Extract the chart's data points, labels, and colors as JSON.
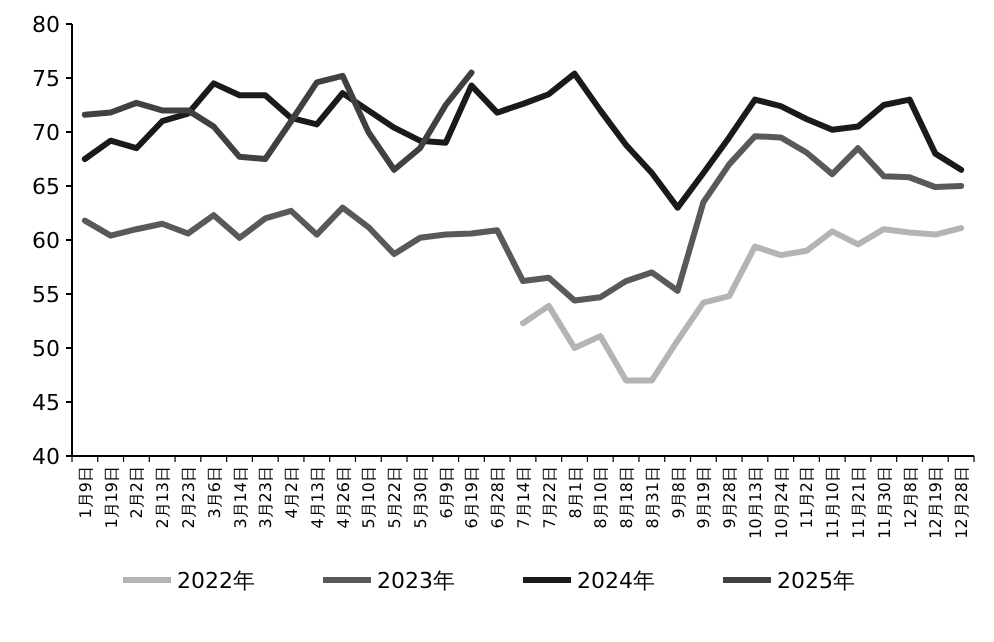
{
  "chart_data": {
    "type": "line",
    "categories": [
      "1月9日",
      "1月19日",
      "2月2日",
      "2月13日",
      "2月23日",
      "3月6日",
      "3月14日",
      "3月23日",
      "4月2日",
      "4月13日",
      "4月26日",
      "5月10日",
      "5月22日",
      "5月30日",
      "6月9日",
      "6月19日",
      "6月28日",
      "7月14日",
      "7月22日",
      "8月1日",
      "8月10日",
      "8月18日",
      "8月31日",
      "9月8日",
      "9月19日",
      "9月28日",
      "10月13日",
      "10月24日",
      "11月2日",
      "11月10日",
      "11月21日",
      "11月30日",
      "12月8日",
      "12月19日",
      "12月28日"
    ],
    "series": [
      {
        "name": "2022年",
        "color": "#b4b4b4",
        "values": [
          null,
          null,
          null,
          null,
          null,
          null,
          null,
          null,
          null,
          null,
          null,
          null,
          null,
          null,
          null,
          null,
          null,
          52.3,
          53.9,
          50.0,
          51.1,
          47.0,
          47.0,
          50.7,
          54.2,
          54.8,
          59.4,
          58.6,
          59.0,
          60.8,
          59.6,
          61.0,
          60.7,
          60.5,
          61.1
        ]
      },
      {
        "name": "2023年",
        "color": "#595959",
        "values": [
          61.8,
          60.4,
          61.0,
          61.5,
          60.6,
          62.3,
          60.2,
          62.0,
          62.7,
          60.5,
          63.0,
          61.2,
          58.7,
          60.2,
          60.5,
          60.6,
          60.9,
          56.2,
          56.5,
          54.4,
          54.7,
          56.2,
          57.0,
          55.3,
          63.5,
          67.0,
          69.6,
          69.5,
          68.1,
          66.1,
          68.5,
          65.9,
          65.8,
          64.9,
          65.0
        ]
      },
      {
        "name": "2024年",
        "color": "#1a1a1a",
        "values": [
          67.5,
          69.2,
          68.5,
          71.0,
          71.7,
          74.5,
          73.4,
          73.4,
          71.3,
          70.7,
          73.6,
          72.0,
          70.4,
          69.2,
          69.0,
          74.3,
          71.8,
          72.6,
          73.5,
          75.4,
          72.0,
          68.8,
          66.2,
          63.0,
          66.2,
          69.5,
          73.0,
          72.4,
          71.2,
          70.2,
          70.5,
          72.5,
          73.0,
          68.0,
          66.5
        ]
      },
      {
        "name": "2025年",
        "color": "#404040",
        "values": [
          71.6,
          71.8,
          72.7,
          72.0,
          72.0,
          70.5,
          67.7,
          67.5,
          71.0,
          74.6,
          75.2,
          70.0,
          66.5,
          68.5,
          72.5,
          75.5,
          null,
          null,
          null,
          null,
          null,
          null,
          null,
          null,
          null,
          null,
          null,
          null,
          null,
          null,
          null,
          null,
          null,
          null,
          null
        ]
      }
    ],
    "ylim": [
      40,
      80
    ],
    "yticks": [
      40,
      45,
      50,
      55,
      60,
      65,
      70,
      75,
      80
    ],
    "legend": "bottom"
  }
}
